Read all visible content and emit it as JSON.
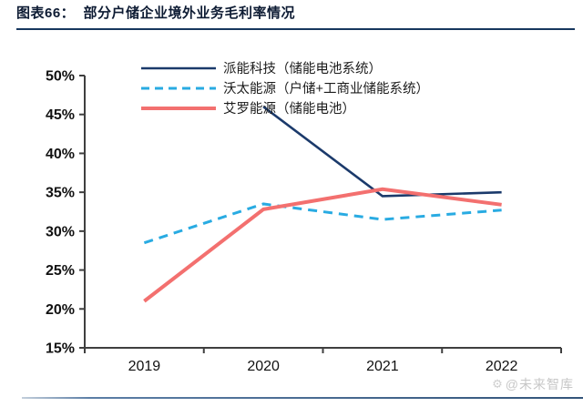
{
  "header": {
    "title": "图表66：  部分户储企业境外业务毛利率情况"
  },
  "chart_data": {
    "type": "line",
    "title": "部分户储企业境外业务毛利率情况",
    "categories": [
      "2019",
      "2020",
      "2021",
      "2022"
    ],
    "series": [
      {
        "name": "派能科技（储能电池系统）",
        "color": "#1b3a6b",
        "dash": "solid",
        "values": [
          null,
          46.0,
          34.5,
          35.0
        ]
      },
      {
        "name": "沃太能源（户储+工商业储能系统）",
        "color": "#29abe2",
        "dash": "dashed",
        "values": [
          28.5,
          33.5,
          31.5,
          32.7
        ]
      },
      {
        "name": "艾罗能源（储能电池）",
        "color": "#f3706f",
        "dash": "solid",
        "values": [
          21.0,
          32.8,
          35.4,
          33.4
        ]
      }
    ],
    "ylim": [
      15,
      50
    ],
    "y_tick_step": 5,
    "y_tick_suffix": "%",
    "grid": false,
    "legend_position": "top-left-inside",
    "axis_color": "#3f3f3f",
    "tick_label_color": "#111111"
  },
  "watermark": {
    "icon": "gear",
    "text": "@未来智库"
  }
}
